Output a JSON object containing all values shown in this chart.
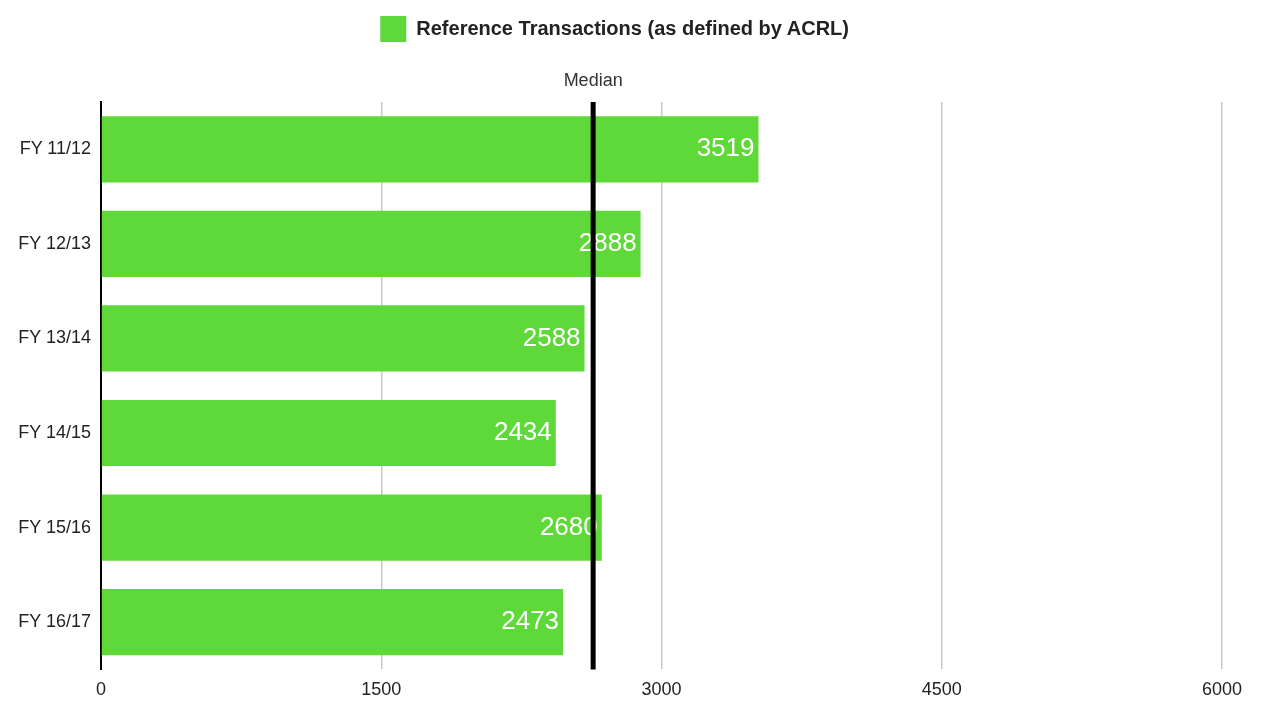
{
  "chart_data": {
    "type": "bar",
    "orientation": "horizontal",
    "categories": [
      "FY 11/12",
      "FY 12/13",
      "FY 13/14",
      "FY 14/15",
      "FY 15/16",
      "FY 16/17"
    ],
    "series": [
      {
        "name": "Reference Transactions (as defined by ACRL)",
        "color": "#5fd93a",
        "values": [
          3519,
          2888,
          2588,
          2434,
          2680,
          2473
        ]
      }
    ],
    "xlim": [
      0,
      6000
    ],
    "xticks": [
      0,
      1500,
      3000,
      4500,
      6000
    ],
    "grid": "x",
    "legend": "top",
    "data_labels": true,
    "ref_lines": [
      {
        "axis": "x",
        "value": 2634,
        "label": "Median",
        "color": "#000000"
      }
    ]
  }
}
